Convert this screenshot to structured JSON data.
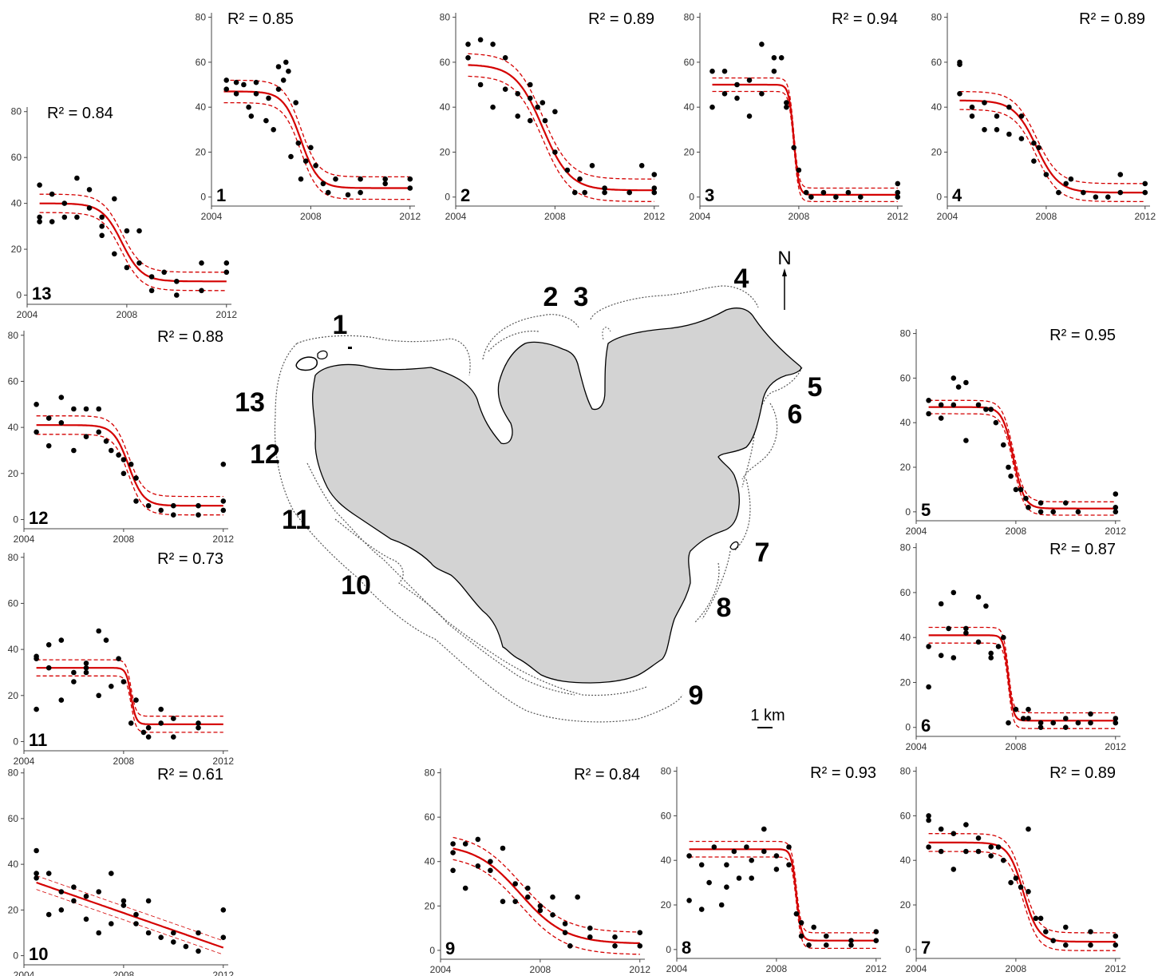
{
  "colors": {
    "fit": "#d40000",
    "points": "#000000",
    "lake": "#d3d3d3",
    "axis": "#444444"
  },
  "map": {
    "north_label": "N",
    "scale_label": "1 km",
    "site_labels": [
      "1",
      "2",
      "3",
      "4",
      "5",
      "6",
      "7",
      "8",
      "9",
      "10",
      "11",
      "12",
      "13"
    ]
  },
  "chart_data": [
    {
      "type": "scatter",
      "site": "1",
      "r2_label": "R² = 0.85",
      "xlim": [
        2004,
        2012
      ],
      "ylim": [
        0,
        80
      ],
      "xticks": [
        2004,
        2008,
        2012
      ],
      "yticks": [
        0,
        20,
        40,
        60,
        80
      ],
      "fit": {
        "model": "sigmoid",
        "upper": 47,
        "lower": 4,
        "midpoint": 2007.6,
        "scale": 0.35,
        "band": 5
      },
      "x": [
        2004.6,
        2004.6,
        2005,
        2005,
        2005.3,
        2005.5,
        2005.6,
        2005.8,
        2005.8,
        2006.2,
        2006.3,
        2006.5,
        2006.7,
        2006.7,
        2006.9,
        2007,
        2007.1,
        2007.2,
        2007.4,
        2007.5,
        2007.6,
        2007.8,
        2008,
        2008.2,
        2008.5,
        2008.7,
        2009,
        2009.5,
        2010,
        2010,
        2011,
        2011,
        2012,
        2012
      ],
      "y": [
        52,
        48,
        51,
        46,
        50,
        40,
        36,
        51,
        46,
        34,
        44,
        30,
        48,
        58,
        52,
        60,
        56,
        18,
        42,
        24,
        8,
        16,
        22,
        14,
        6,
        2,
        8,
        1,
        8,
        2,
        8,
        6,
        8,
        4
      ]
    },
    {
      "type": "scatter",
      "site": "2",
      "r2_label": "R² = 0.89",
      "xlim": [
        2004,
        2012
      ],
      "ylim": [
        0,
        80
      ],
      "xticks": [
        2004,
        2008,
        2012
      ],
      "yticks": [
        0,
        20,
        40,
        60,
        80
      ],
      "fit": {
        "model": "sigmoid",
        "upper": 59,
        "lower": 3,
        "midpoint": 2007.5,
        "scale": 0.55,
        "band": 5
      },
      "x": [
        2004.5,
        2004.5,
        2005,
        2005,
        2005.5,
        2005.5,
        2006,
        2006,
        2006.5,
        2006.5,
        2007,
        2007,
        2007,
        2007.3,
        2007.5,
        2007.6,
        2008,
        2008,
        2008.5,
        2008.8,
        2009,
        2009.2,
        2009.5,
        2010,
        2010,
        2011,
        2011.5,
        2012,
        2012,
        2012
      ],
      "y": [
        68,
        62,
        70,
        50,
        68,
        40,
        62,
        48,
        46,
        36,
        50,
        44,
        34,
        40,
        42,
        34,
        38,
        20,
        12,
        2,
        8,
        2,
        14,
        4,
        2,
        2,
        14,
        10,
        4,
        2
      ]
    },
    {
      "type": "scatter",
      "site": "3",
      "r2_label": "R² = 0.94",
      "xlim": [
        2004,
        2012
      ],
      "ylim": [
        0,
        80
      ],
      "xticks": [
        2004,
        2008,
        2012
      ],
      "yticks": [
        0,
        20,
        40,
        60,
        80
      ],
      "fit": {
        "model": "sigmoid",
        "upper": 50,
        "lower": 1,
        "midpoint": 2007.8,
        "scale": 0.1,
        "band": 3
      },
      "x": [
        2004.5,
        2004.5,
        2005,
        2005,
        2005.5,
        2005.5,
        2006,
        2006,
        2006.5,
        2006.5,
        2007,
        2007,
        2007.3,
        2007.5,
        2007.5,
        2007.8,
        2008,
        2008.3,
        2008.5,
        2009,
        2009.5,
        2010,
        2010.5,
        2012,
        2012,
        2012
      ],
      "y": [
        56,
        40,
        56,
        46,
        50,
        44,
        52,
        36,
        68,
        46,
        62,
        56,
        62,
        42,
        40,
        22,
        12,
        2,
        0,
        2,
        0,
        2,
        0,
        6,
        2,
        0
      ]
    },
    {
      "type": "scatter",
      "site": "4",
      "r2_label": "R² = 0.89",
      "xlim": [
        2004,
        2012
      ],
      "ylim": [
        0,
        80
      ],
      "xticks": [
        2004,
        2008,
        2012
      ],
      "yticks": [
        0,
        20,
        40,
        60,
        80
      ],
      "fit": {
        "model": "sigmoid",
        "upper": 43,
        "lower": 2,
        "midpoint": 2007.6,
        "scale": 0.45,
        "band": 4
      },
      "x": [
        2004.5,
        2004.5,
        2004.5,
        2005,
        2005,
        2005.5,
        2005.5,
        2006,
        2006,
        2006.5,
        2006.5,
        2007,
        2007,
        2007.5,
        2007.5,
        2007.7,
        2008,
        2008.5,
        2008.8,
        2009,
        2009.5,
        2010,
        2010.5,
        2011,
        2011,
        2012,
        2012
      ],
      "y": [
        60,
        59,
        46,
        40,
        36,
        42,
        30,
        36,
        30,
        40,
        28,
        36,
        26,
        24,
        16,
        22,
        10,
        2,
        6,
        8,
        2,
        0,
        0,
        10,
        2,
        6,
        2
      ]
    },
    {
      "type": "scatter",
      "site": "5",
      "r2_label": "R² = 0.95",
      "xlim": [
        2004,
        2012
      ],
      "ylim": [
        0,
        80
      ],
      "xticks": [
        2004,
        2008,
        2012
      ],
      "yticks": [
        0,
        20,
        40,
        60,
        80
      ],
      "fit": {
        "model": "sigmoid",
        "upper": 47,
        "lower": 1.5,
        "midpoint": 2007.9,
        "scale": 0.22,
        "band": 3
      },
      "x": [
        2004.5,
        2004.5,
        2005,
        2005,
        2005.5,
        2005.5,
        2005.7,
        2006,
        2006,
        2006.5,
        2006.8,
        2007,
        2007.2,
        2007.5,
        2007.7,
        2007.8,
        2008,
        2008.2,
        2008.4,
        2008.5,
        2009,
        2009,
        2009.5,
        2010,
        2010.5,
        2012,
        2012,
        2012
      ],
      "y": [
        50,
        44,
        48,
        42,
        60,
        48,
        56,
        32,
        58,
        48,
        46,
        46,
        40,
        30,
        20,
        16,
        10,
        10,
        6,
        2,
        4,
        0,
        0,
        4,
        0,
        8,
        2,
        0
      ]
    },
    {
      "type": "scatter",
      "site": "6",
      "r2_label": "R² = 0.87",
      "xlim": [
        2004,
        2012
      ],
      "ylim": [
        0,
        80
      ],
      "xticks": [
        2004,
        2008,
        2012
      ],
      "yticks": [
        0,
        20,
        40,
        60,
        80
      ],
      "fit": {
        "model": "sigmoid",
        "upper": 41,
        "lower": 3,
        "midpoint": 2007.7,
        "scale": 0.1,
        "band": 3.5
      },
      "x": [
        2004.5,
        2004.5,
        2005,
        2005,
        2005.3,
        2005.5,
        2005.5,
        2006,
        2006,
        2006.5,
        2006.5,
        2006.8,
        2007,
        2007,
        2007.3,
        2007.5,
        2007.7,
        2008,
        2008.3,
        2008.5,
        2008.5,
        2009,
        2009,
        2009.5,
        2010,
        2010,
        2010.5,
        2011,
        2011,
        2012,
        2012
      ],
      "y": [
        18,
        36,
        55,
        32,
        44,
        60,
        31,
        44,
        42,
        58,
        38,
        54,
        33,
        31,
        36,
        40,
        2,
        8,
        4,
        8,
        4,
        2,
        0,
        2,
        4,
        0,
        2,
        6,
        2,
        4,
        2
      ]
    },
    {
      "type": "scatter",
      "site": "7",
      "r2_label": "R² = 0.89",
      "xlim": [
        2004,
        2012
      ],
      "ylim": [
        0,
        80
      ],
      "xticks": [
        2004,
        2008,
        2012
      ],
      "yticks": [
        0,
        20,
        40,
        60,
        80
      ],
      "fit": {
        "model": "sigmoid",
        "upper": 48,
        "lower": 3.5,
        "midpoint": 2008.3,
        "scale": 0.3,
        "band": 4
      },
      "x": [
        2004.5,
        2004.5,
        2004.5,
        2005,
        2005,
        2005.5,
        2005.5,
        2006,
        2006,
        2006.5,
        2006.5,
        2007,
        2007,
        2007.3,
        2007.5,
        2007.8,
        2008,
        2008.2,
        2008.5,
        2008.5,
        2008.8,
        2009,
        2009.2,
        2009.5,
        2010,
        2010,
        2011,
        2011,
        2012,
        2012
      ],
      "y": [
        60,
        58,
        46,
        54,
        44,
        52,
        36,
        56,
        44,
        50,
        44,
        46,
        42,
        46,
        40,
        30,
        32,
        28,
        54,
        26,
        14,
        14,
        8,
        4,
        10,
        2,
        8,
        2,
        6,
        2
      ]
    },
    {
      "type": "scatter",
      "site": "8",
      "r2_label": "R² = 0.93",
      "xlim": [
        2004,
        2012
      ],
      "ylim": [
        0,
        80
      ],
      "xticks": [
        2004,
        2008,
        2012
      ],
      "yticks": [
        0,
        20,
        40,
        60,
        80
      ],
      "fit": {
        "model": "sigmoid",
        "upper": 45,
        "lower": 4,
        "midpoint": 2008.8,
        "scale": 0.1,
        "band": 3.5
      },
      "x": [
        2004.5,
        2004.5,
        2005,
        2005,
        2005.3,
        2005.5,
        2005.8,
        2006,
        2006,
        2006.3,
        2006.5,
        2006.8,
        2007,
        2007,
        2007.5,
        2007.5,
        2008,
        2008,
        2008.5,
        2008.5,
        2008.8,
        2009,
        2009,
        2009.3,
        2009.5,
        2010,
        2010,
        2011,
        2011,
        2012,
        2012
      ],
      "y": [
        42,
        22,
        38,
        18,
        30,
        46,
        20,
        38,
        28,
        44,
        32,
        46,
        40,
        32,
        54,
        44,
        36,
        42,
        38,
        46,
        16,
        12,
        6,
        2,
        10,
        6,
        2,
        4,
        2,
        8,
        4
      ]
    },
    {
      "type": "scatter",
      "site": "9",
      "r2_label": "R² = 0.84",
      "xlim": [
        2004,
        2012
      ],
      "ylim": [
        0,
        80
      ],
      "xticks": [
        2004,
        2008,
        2012
      ],
      "yticks": [
        0,
        20,
        40,
        60,
        80
      ],
      "fit": {
        "model": "sigmoid",
        "upper": 48,
        "lower": 3,
        "midpoint": 2007.2,
        "scale": 0.9,
        "band": 5
      },
      "x": [
        2004.5,
        2004.5,
        2004.5,
        2005,
        2005,
        2005.5,
        2005.5,
        2006,
        2006,
        2006.5,
        2006.5,
        2007,
        2007,
        2007.5,
        2007.5,
        2008,
        2008,
        2008.5,
        2008.5,
        2009,
        2009,
        2009.2,
        2009.5,
        2010,
        2010,
        2011,
        2011,
        2012,
        2012
      ],
      "y": [
        48,
        44,
        36,
        48,
        28,
        50,
        38,
        40,
        36,
        46,
        22,
        30,
        22,
        28,
        24,
        20,
        18,
        16,
        24,
        12,
        8,
        2,
        24,
        10,
        6,
        6,
        2,
        8,
        2
      ],
      "extra_points": []
    },
    {
      "type": "scatter",
      "site": "10",
      "r2_label": "R² = 0.61",
      "xlim": [
        2004,
        2012
      ],
      "ylim": [
        0,
        80
      ],
      "xticks": [
        2004,
        2008,
        2012
      ],
      "yticks": [
        0,
        20,
        40,
        60,
        80
      ],
      "fit": {
        "model": "linear",
        "at_start": 32,
        "at_end": 3.5,
        "x_start": 2004.5,
        "x_end": 2012,
        "band": 3
      },
      "x": [
        2004.5,
        2004.5,
        2004.5,
        2005,
        2005,
        2005.5,
        2005.5,
        2006,
        2006,
        2006.5,
        2006.5,
        2007,
        2007,
        2007.5,
        2007.5,
        2008,
        2008,
        2008.5,
        2008.5,
        2009,
        2009,
        2009.5,
        2010,
        2010,
        2010.5,
        2011,
        2011,
        2012,
        2012
      ],
      "y": [
        46,
        36,
        34,
        36,
        18,
        28,
        20,
        30,
        24,
        26,
        16,
        28,
        10,
        36,
        14,
        24,
        22,
        18,
        14,
        10,
        24,
        8,
        10,
        6,
        4,
        10,
        2,
        20,
        8
      ]
    },
    {
      "type": "scatter",
      "site": "11",
      "r2_label": "R² = 0.73",
      "xlim": [
        2004,
        2012
      ],
      "ylim": [
        0,
        80
      ],
      "xticks": [
        2004,
        2008,
        2012
      ],
      "yticks": [
        0,
        20,
        40,
        60,
        80
      ],
      "fit": {
        "model": "sigmoid",
        "upper": 32,
        "lower": 7.5,
        "midpoint": 2008.3,
        "scale": 0.1,
        "band": 3.5
      },
      "x": [
        2004.5,
        2004.5,
        2004.5,
        2005,
        2005,
        2005.5,
        2005.5,
        2006,
        2006,
        2006.5,
        2006.5,
        2006.5,
        2007,
        2007,
        2007.3,
        2007.5,
        2007.8,
        2008,
        2008.3,
        2008.5,
        2008.8,
        2009,
        2009,
        2009.5,
        2009.5,
        2010,
        2010,
        2011,
        2011
      ],
      "y": [
        14,
        37,
        36,
        42,
        32,
        44,
        18,
        30,
        26,
        32,
        30,
        34,
        48,
        20,
        44,
        24,
        36,
        26,
        8,
        18,
        4,
        6,
        2,
        14,
        8,
        10,
        2,
        8,
        6
      ]
    },
    {
      "type": "scatter",
      "site": "12",
      "r2_label": "R² = 0.88",
      "xlim": [
        2004,
        2012
      ],
      "ylim": [
        0,
        80
      ],
      "xticks": [
        2004,
        2008,
        2012
      ],
      "yticks": [
        0,
        20,
        40,
        60,
        80
      ],
      "fit": {
        "model": "sigmoid",
        "upper": 41,
        "lower": 6,
        "midpoint": 2008.2,
        "scale": 0.3,
        "band": 4
      },
      "x": [
        2004.5,
        2004.5,
        2005,
        2005,
        2005.5,
        2005.5,
        2006,
        2006,
        2006.5,
        2006.5,
        2007,
        2007,
        2007.3,
        2007.5,
        2007.8,
        2008,
        2008,
        2008.3,
        2008.5,
        2008.5,
        2009,
        2009.5,
        2010,
        2010,
        2011,
        2011,
        2012,
        2012,
        2012
      ],
      "y": [
        50,
        38,
        44,
        32,
        53,
        42,
        48,
        30,
        48,
        36,
        48,
        38,
        34,
        30,
        28,
        20,
        26,
        24,
        8,
        18,
        6,
        4,
        6,
        2,
        6,
        2,
        24,
        8,
        4
      ]
    },
    {
      "type": "scatter",
      "site": "13",
      "r2_label": "R² = 0.84",
      "xlim": [
        2004,
        2012
      ],
      "ylim": [
        0,
        80
      ],
      "xticks": [
        2004,
        2008,
        2012
      ],
      "yticks": [
        0,
        20,
        40,
        60,
        80
      ],
      "fit": {
        "model": "sigmoid",
        "upper": 40,
        "lower": 6,
        "midpoint": 2007.8,
        "scale": 0.4,
        "band": 4
      },
      "x": [
        2004.5,
        2004.5,
        2004.5,
        2005,
        2005,
        2005.5,
        2005.5,
        2006,
        2006,
        2006.5,
        2006.5,
        2007,
        2007,
        2007,
        2007.5,
        2007.5,
        2008,
        2008,
        2008.5,
        2008.5,
        2009,
        2009,
        2009.5,
        2010,
        2010,
        2011,
        2011,
        2012,
        2012
      ],
      "y": [
        48,
        34,
        32,
        44,
        32,
        40,
        34,
        51,
        34,
        46,
        38,
        34,
        30,
        26,
        42,
        18,
        28,
        12,
        14,
        28,
        8,
        2,
        10,
        6,
        0,
        14,
        2,
        14,
        10
      ]
    }
  ]
}
